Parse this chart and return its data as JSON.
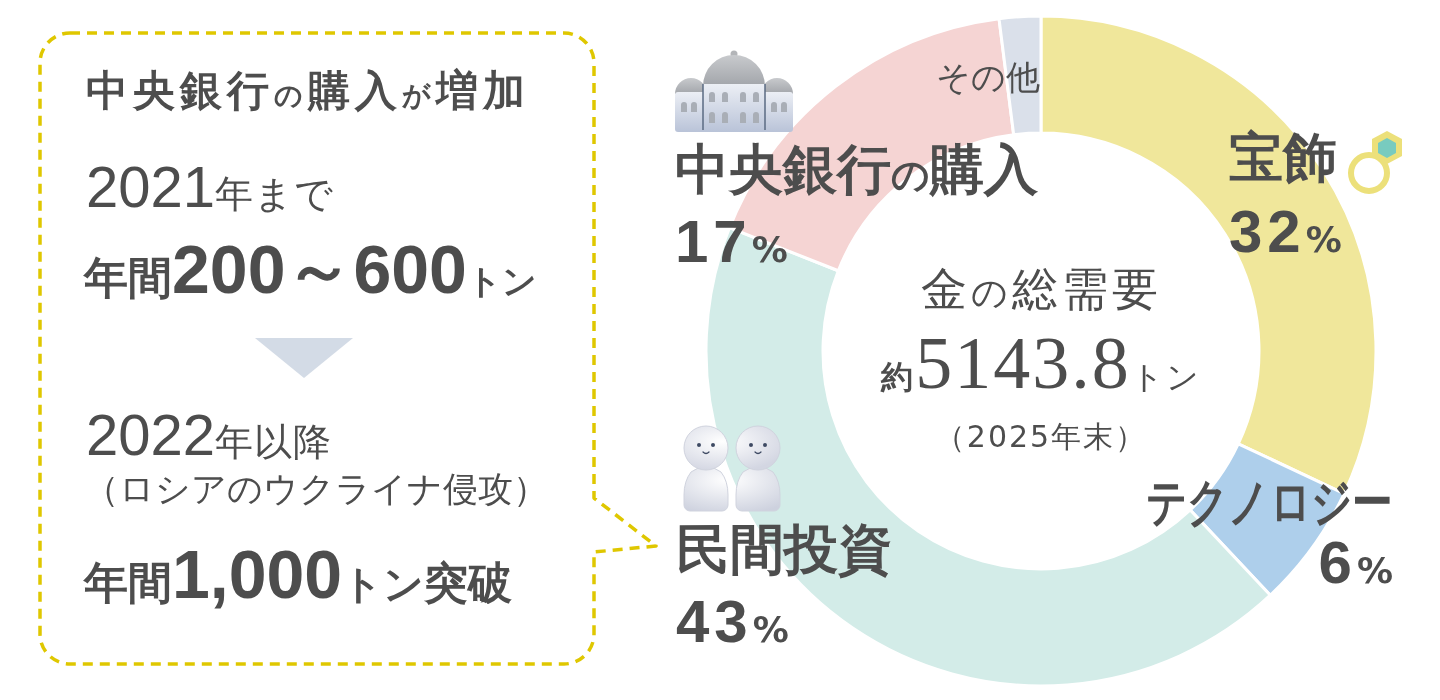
{
  "chart_data": {
    "type": "donut",
    "title": "金の総需要",
    "categories": [
      "宝飾",
      "テクノロジー",
      "民間投資",
      "中央銀行の購入",
      "その他"
    ],
    "values": [
      32,
      6,
      43,
      17,
      2
    ],
    "colors": [
      "#f0e79b",
      "#aecfeb",
      "#d3ece8",
      "#f5d4d3",
      "#dae0ea"
    ],
    "value_labels": [
      "32%",
      "6%",
      "43%",
      "17%",
      null
    ],
    "annotations": [
      "約5143.8トン",
      "（2025年末）",
      "中央銀行の購入が増加",
      "2021年まで",
      "年間200～600トン",
      "2022年以降",
      "（ロシアのウクライナ侵攻）",
      "年間1,000トン突破"
    ]
  }
}
